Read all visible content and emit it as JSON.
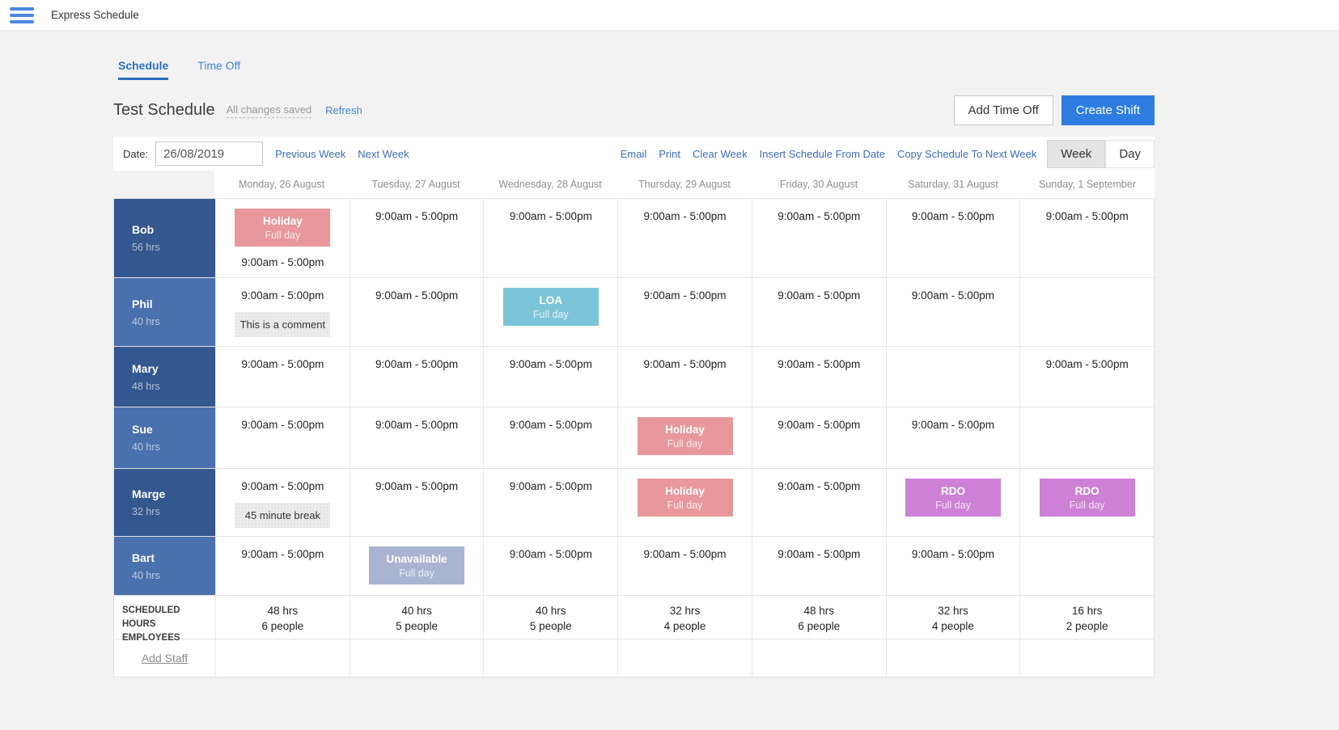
{
  "colors": {
    "accent": "#2e7de0",
    "link": "#3c6db8",
    "holiday": "#e8989b",
    "loa": "#7cc5d8",
    "rdo": "#cd80d5",
    "unavailable": "#a9b4d2",
    "name_cell_dark": "#35578f",
    "name_cell_light": "#4a70ae"
  },
  "header": {
    "title": "Express Schedule"
  },
  "tabs": [
    {
      "label": "Schedule",
      "active": true
    },
    {
      "label": "Time Off",
      "active": false
    }
  ],
  "toolbar": {
    "schedule_title": "Test Schedule",
    "save_status": "All changes saved",
    "refresh_label": "Refresh",
    "add_time_off_label": "Add Time Off",
    "create_shift_label": "Create Shift"
  },
  "controls": {
    "date_label": "Date:",
    "date_value": "26/08/2019",
    "previous_week_label": "Previous Week",
    "next_week_label": "Next Week",
    "action_links": [
      "Email",
      "Print",
      "Clear Week",
      "Insert Schedule From Date",
      "Copy Schedule To Next Week"
    ],
    "view_toggle": [
      {
        "label": "Week",
        "active": true
      },
      {
        "label": "Day",
        "active": false
      }
    ]
  },
  "schedule": {
    "day_headers": [
      "Monday, 26 August",
      "Tuesday, 27 August",
      "Wednesday, 28 August",
      "Thursday, 29 August",
      "Friday, 30 August",
      "Saturday, 31 August",
      "Sunday, 1 September"
    ],
    "employees": [
      {
        "name": "Bob",
        "hours": "56 hrs",
        "cells": [
          {
            "badge": "holiday",
            "badge_title": "Holiday",
            "badge_subtitle": "Full day",
            "shift": "9:00am - 5:00pm"
          },
          {
            "shift": "9:00am - 5:00pm"
          },
          {
            "shift": "9:00am - 5:00pm"
          },
          {
            "shift": "9:00am - 5:00pm"
          },
          {
            "shift": "9:00am - 5:00pm"
          },
          {
            "shift": "9:00am - 5:00pm"
          },
          {
            "shift": "9:00am - 5:00pm"
          }
        ]
      },
      {
        "name": "Phil",
        "hours": "40 hrs",
        "cells": [
          {
            "shift": "9:00am - 5:00pm",
            "comment": "This is a comment"
          },
          {
            "shift": "9:00am - 5:00pm"
          },
          {
            "badge": "loa",
            "badge_title": "LOA",
            "badge_subtitle": "Full day"
          },
          {
            "shift": "9:00am - 5:00pm"
          },
          {
            "shift": "9:00am - 5:00pm"
          },
          {
            "shift": "9:00am - 5:00pm"
          },
          {}
        ]
      },
      {
        "name": "Mary",
        "hours": "48 hrs",
        "cells": [
          {
            "shift": "9:00am - 5:00pm"
          },
          {
            "shift": "9:00am - 5:00pm"
          },
          {
            "shift": "9:00am - 5:00pm"
          },
          {
            "shift": "9:00am - 5:00pm"
          },
          {
            "shift": "9:00am - 5:00pm"
          },
          {},
          {
            "shift": "9:00am - 5:00pm"
          }
        ]
      },
      {
        "name": "Sue",
        "hours": "40 hrs",
        "cells": [
          {
            "shift": "9:00am - 5:00pm"
          },
          {
            "shift": "9:00am - 5:00pm"
          },
          {
            "shift": "9:00am - 5:00pm"
          },
          {
            "badge": "holiday",
            "badge_title": "Holiday",
            "badge_subtitle": "Full day"
          },
          {
            "shift": "9:00am - 5:00pm"
          },
          {
            "shift": "9:00am - 5:00pm"
          },
          {}
        ]
      },
      {
        "name": "Marge",
        "hours": "32 hrs",
        "cells": [
          {
            "shift": "9:00am - 5:00pm",
            "comment": "45 minute break"
          },
          {
            "shift": "9:00am - 5:00pm"
          },
          {
            "shift": "9:00am - 5:00pm"
          },
          {
            "badge": "holiday",
            "badge_title": "Holiday",
            "badge_subtitle": "Full day"
          },
          {
            "shift": "9:00am - 5:00pm"
          },
          {
            "badge": "rdo",
            "badge_title": "RDO",
            "badge_subtitle": "Full day"
          },
          {
            "badge": "rdo",
            "badge_title": "RDO",
            "badge_subtitle": "Full day"
          }
        ]
      },
      {
        "name": "Bart",
        "hours": "40 hrs",
        "cells": [
          {
            "shift": "9:00am - 5:00pm"
          },
          {
            "badge": "unavailable",
            "badge_title": "Unavailable",
            "badge_subtitle": "Full day"
          },
          {
            "shift": "9:00am - 5:00pm"
          },
          {
            "shift": "9:00am - 5:00pm"
          },
          {
            "shift": "9:00am - 5:00pm"
          },
          {
            "shift": "9:00am - 5:00pm"
          },
          {}
        ]
      }
    ],
    "totals": {
      "row_label_line1": "SCHEDULED HOURS",
      "row_label_line2": "EMPLOYEES",
      "days": [
        {
          "hours": "48 hrs",
          "people": "6 people"
        },
        {
          "hours": "40 hrs",
          "people": "5 people"
        },
        {
          "hours": "40 hrs",
          "people": "5 people"
        },
        {
          "hours": "32 hrs",
          "people": "4 people"
        },
        {
          "hours": "48 hrs",
          "people": "6 people"
        },
        {
          "hours": "32 hrs",
          "people": "4 people"
        },
        {
          "hours": "16 hrs",
          "people": "2 people"
        }
      ]
    },
    "add_staff_label": "Add Staff"
  }
}
